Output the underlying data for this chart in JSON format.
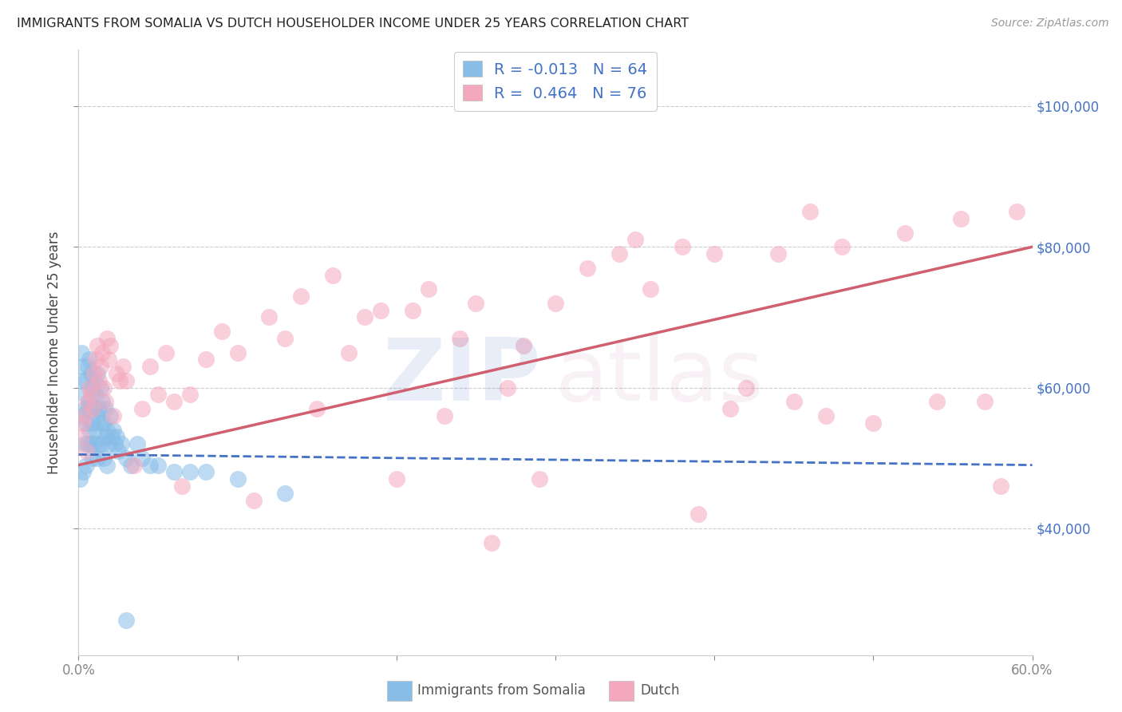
{
  "title": "IMMIGRANTS FROM SOMALIA VS DUTCH HOUSEHOLDER INCOME UNDER 25 YEARS CORRELATION CHART",
  "source": "Source: ZipAtlas.com",
  "ylabel": "Householder Income Under 25 years",
  "xmin": 0.0,
  "xmax": 0.6,
  "ymin": 22000,
  "ymax": 108000,
  "yticks": [
    40000,
    60000,
    80000,
    100000
  ],
  "ytick_labels": [
    "$40,000",
    "$60,000",
    "$80,000",
    "$100,000"
  ],
  "xtick_positions": [
    0.0,
    0.1,
    0.2,
    0.3,
    0.4,
    0.5,
    0.6
  ],
  "xtick_labels": [
    "0.0%",
    "",
    "",
    "",
    "",
    "",
    "60.0%"
  ],
  "somalia_R": -0.013,
  "somalia_N": 64,
  "dutch_R": 0.464,
  "dutch_N": 76,
  "somalia_color": "#88bde8",
  "dutch_color": "#f4a8be",
  "somalia_line_color": "#4472c4",
  "dutch_line_color": "#d06070",
  "somalia_line_y0": 50500,
  "somalia_line_y1": 49000,
  "dutch_line_y0": 49000,
  "dutch_line_y1": 80000,
  "somalia_x": [
    0.001,
    0.002,
    0.002,
    0.003,
    0.003,
    0.003,
    0.004,
    0.004,
    0.004,
    0.005,
    0.005,
    0.005,
    0.006,
    0.006,
    0.006,
    0.007,
    0.007,
    0.007,
    0.008,
    0.008,
    0.008,
    0.009,
    0.009,
    0.009,
    0.01,
    0.01,
    0.01,
    0.011,
    0.011,
    0.012,
    0.012,
    0.012,
    0.013,
    0.013,
    0.014,
    0.014,
    0.015,
    0.015,
    0.016,
    0.016,
    0.017,
    0.017,
    0.018,
    0.018,
    0.019,
    0.02,
    0.021,
    0.022,
    0.023,
    0.024,
    0.025,
    0.027,
    0.03,
    0.033,
    0.037,
    0.04,
    0.045,
    0.05,
    0.06,
    0.07,
    0.08,
    0.1,
    0.13,
    0.03
  ],
  "somalia_y": [
    47000,
    61000,
    65000,
    56000,
    63000,
    48000,
    57000,
    52000,
    59000,
    61000,
    55000,
    49000,
    63000,
    57000,
    52000,
    64000,
    58000,
    54000,
    62000,
    57000,
    52000,
    60000,
    55000,
    50000,
    61000,
    57000,
    52000,
    59000,
    54000,
    62000,
    56000,
    50000,
    57000,
    52000,
    60000,
    55000,
    58000,
    52000,
    55000,
    50000,
    57000,
    53000,
    54000,
    49000,
    52000,
    56000,
    53000,
    54000,
    52000,
    53000,
    51000,
    52000,
    50000,
    49000,
    52000,
    50000,
    49000,
    49000,
    48000,
    48000,
    48000,
    47000,
    45000,
    27000
  ],
  "dutch_x": [
    0.002,
    0.003,
    0.004,
    0.005,
    0.006,
    0.007,
    0.008,
    0.009,
    0.01,
    0.011,
    0.012,
    0.013,
    0.014,
    0.015,
    0.016,
    0.017,
    0.018,
    0.019,
    0.02,
    0.022,
    0.024,
    0.026,
    0.028,
    0.03,
    0.035,
    0.04,
    0.045,
    0.05,
    0.055,
    0.06,
    0.065,
    0.07,
    0.08,
    0.09,
    0.1,
    0.11,
    0.12,
    0.13,
    0.14,
    0.15,
    0.16,
    0.17,
    0.18,
    0.19,
    0.2,
    0.21,
    0.22,
    0.23,
    0.24,
    0.25,
    0.26,
    0.27,
    0.28,
    0.29,
    0.3,
    0.32,
    0.34,
    0.36,
    0.38,
    0.4,
    0.42,
    0.44,
    0.46,
    0.48,
    0.5,
    0.52,
    0.54,
    0.555,
    0.57,
    0.58,
    0.59,
    0.45,
    0.47,
    0.39,
    0.41,
    0.35
  ],
  "dutch_y": [
    53000,
    55000,
    56000,
    51000,
    58000,
    60000,
    59000,
    57000,
    62000,
    64000,
    66000,
    61000,
    63000,
    65000,
    60000,
    58000,
    67000,
    64000,
    66000,
    56000,
    62000,
    61000,
    63000,
    61000,
    49000,
    57000,
    63000,
    59000,
    65000,
    58000,
    46000,
    59000,
    64000,
    68000,
    65000,
    44000,
    70000,
    67000,
    73000,
    57000,
    76000,
    65000,
    70000,
    71000,
    47000,
    71000,
    74000,
    56000,
    67000,
    72000,
    38000,
    60000,
    66000,
    47000,
    72000,
    77000,
    79000,
    74000,
    80000,
    79000,
    60000,
    79000,
    85000,
    80000,
    55000,
    82000,
    58000,
    84000,
    58000,
    46000,
    85000,
    58000,
    56000,
    42000,
    57000,
    81000
  ]
}
